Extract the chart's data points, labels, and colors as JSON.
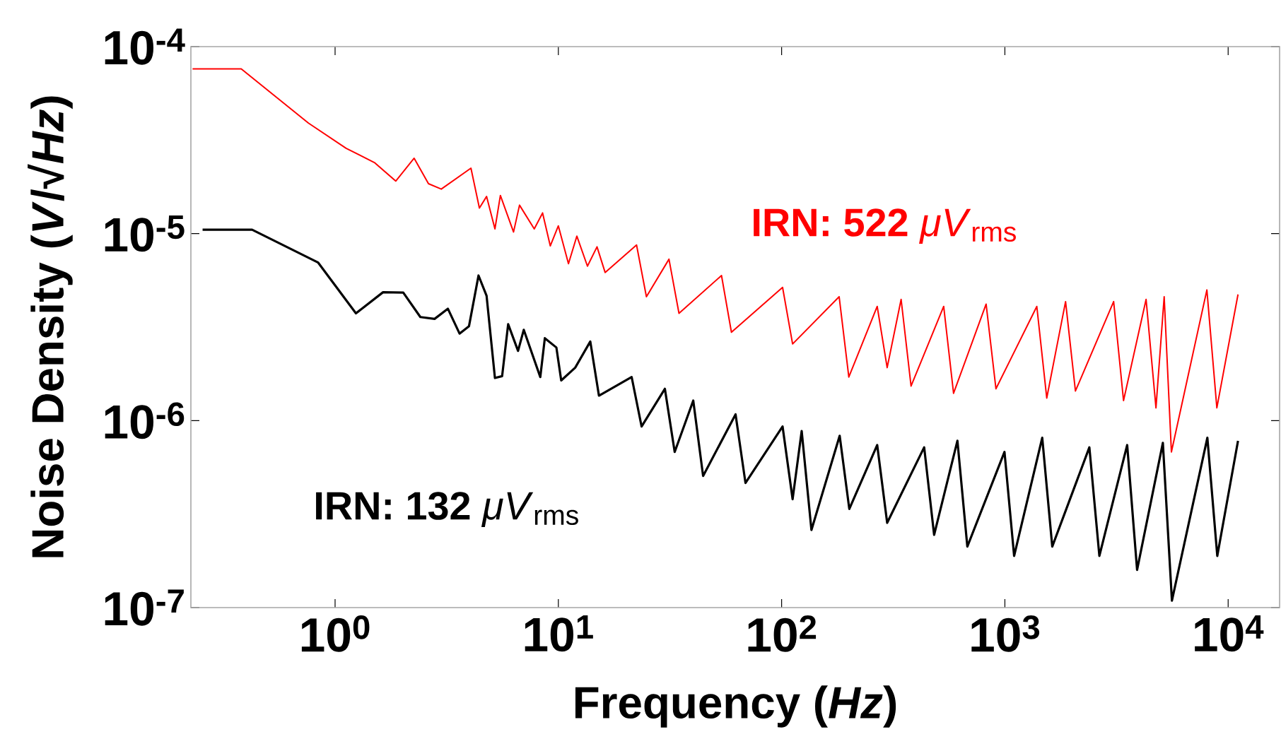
{
  "chart_data": {
    "type": "line",
    "xlabel": "Frequency (*Hz*)",
    "ylabel": "Noise Density (*V*/√*Hz*)",
    "log": "xy",
    "xlim": [
      0.226,
      17000
    ],
    "ylim": [
      1e-07,
      0.0001
    ],
    "xticks": [
      {
        "value": 1,
        "label": "10$^{0}$"
      },
      {
        "value": 10,
        "label": "10$^{1}$"
      },
      {
        "value": 100,
        "label": "10$^{2}$"
      },
      {
        "value": 1000,
        "label": "10$^{3}$"
      },
      {
        "value": 10000,
        "label": "10$^{4}$"
      }
    ],
    "yticks": [
      {
        "value": 1e-07,
        "label": "10$^{-7}$"
      },
      {
        "value": 1e-06,
        "label": "10$^{-6}$"
      },
      {
        "value": 1e-05,
        "label": "10$^{-5}$"
      },
      {
        "value": 0.0001,
        "label": "10$^{-4}$"
      }
    ],
    "marker": "none",
    "line_style": "solid",
    "annotations": [
      "**IRN:  522**  *μV*$_{rms}$",
      "**IRN:  132**  *μV*$_{rms}$"
    ],
    "series": [
      {
        "color": "#ff0000",
        "x": [
          0.23,
          0.38,
          0.76,
          1.12,
          1.5,
          1.87,
          2.26,
          2.62,
          2.99,
          4.06,
          4.43,
          4.77,
          5.2,
          5.5,
          6.3,
          6.7,
          7.8,
          8.5,
          9.2,
          10,
          11.1,
          12.1,
          13.5,
          14.9,
          16.2,
          22.4,
          24.8,
          31.3,
          34.7,
          53.8,
          59.6,
          101,
          112,
          181,
          200,
          268,
          297,
          343,
          380,
          532,
          589,
          824,
          912,
          1390,
          1540,
          1870,
          2070,
          3070,
          3400,
          4290,
          4750,
          5170,
          5570,
          8030,
          8900,
          11070
        ],
        "values": [
          7.6e-05,
          7.6e-05,
          3.9e-05,
          2.86e-05,
          2.4e-05,
          1.91e-05,
          2.53e-05,
          1.85e-05,
          1.73e-05,
          2.24e-05,
          1.37e-05,
          1.58e-05,
          1.06e-05,
          1.6e-05,
          1.02e-05,
          1.42e-05,
          1.06e-05,
          1.29e-05,
          8.6e-06,
          1.1e-05,
          6.9e-06,
          9.7e-06,
          6.7e-06,
          8.5e-06,
          6.2e-06,
          8.7e-06,
          4.6e-06,
          7.3e-06,
          3.75e-06,
          5.97e-06,
          2.97e-06,
          5.16e-06,
          2.57e-06,
          4.6e-06,
          1.71e-06,
          4.08e-06,
          1.92e-06,
          4.45e-06,
          1.53e-06,
          4.08e-06,
          1.4e-06,
          4.2e-06,
          1.48e-06,
          4.08e-06,
          1.32e-06,
          4.33e-06,
          1.44e-06,
          4.33e-06,
          1.28e-06,
          4.45e-06,
          1.17e-06,
          4.6e-06,
          6.8e-07,
          5e-06,
          1.17e-06,
          4.73e-06
        ]
      },
      {
        "color": "#000000",
        "x": [
          0.255,
          0.425,
          0.84,
          1.24,
          1.64,
          2.02,
          2.41,
          2.79,
          3.2,
          3.61,
          3.98,
          4.39,
          4.77,
          5.2,
          5.6,
          5.96,
          6.6,
          7.0,
          8.3,
          8.7,
          9.8,
          10.3,
          11.9,
          13.9,
          15.2,
          21.3,
          23.6,
          30,
          33.2,
          40.2,
          44.5,
          62.2,
          68.9,
          101,
          112,
          123,
          136,
          182,
          201,
          268,
          297,
          435,
          482,
          613,
          679,
          996,
          1100,
          1470,
          1630,
          2390,
          2650,
          3530,
          3910,
          5100,
          5600,
          8070,
          8940,
          11070
        ],
        "values": [
          1.05e-05,
          1.05e-05,
          7e-06,
          3.75e-06,
          4.86e-06,
          4.84e-06,
          3.58e-06,
          3.5e-06,
          3.97e-06,
          2.92e-06,
          3.2e-06,
          5.97e-06,
          4.65e-06,
          1.69e-06,
          1.73e-06,
          3.28e-06,
          2.36e-06,
          3.06e-06,
          1.71e-06,
          2.76e-06,
          2.46e-06,
          1.64e-06,
          1.92e-06,
          2.65e-06,
          1.36e-06,
          1.71e-06,
          9.3e-07,
          1.48e-06,
          6.8e-07,
          1.28e-06,
          5.06e-07,
          1.08e-06,
          4.64e-07,
          9.3e-07,
          3.8e-07,
          8.8e-07,
          2.6e-07,
          8.3e-07,
          3.37e-07,
          7.4e-07,
          2.84e-07,
          7.2e-07,
          2.45e-07,
          7.8e-07,
          2.12e-07,
          6.8e-07,
          1.89e-07,
          8.1e-07,
          2.12e-07,
          7.2e-07,
          1.89e-07,
          7.4e-07,
          1.59e-07,
          7.6e-07,
          1.09e-07,
          8.1e-07,
          1.89e-07,
          7.8e-07
        ]
      }
    ]
  }
}
